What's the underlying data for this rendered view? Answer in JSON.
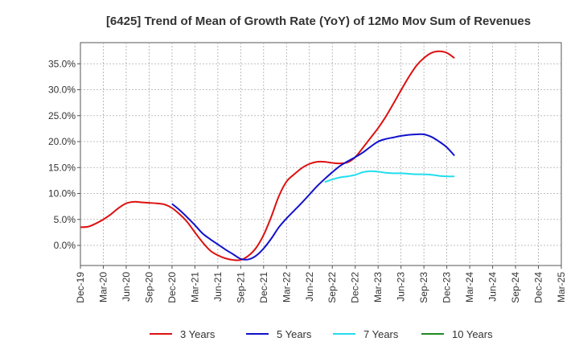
{
  "chart_data": {
    "type": "line",
    "title": "[6425]  Trend of Mean of Growth Rate (YoY) of 12Mo Mov Sum of Revenues",
    "xlabel": "",
    "ylabel": "",
    "ylim": [
      -4,
      40
    ],
    "y_ticks": [
      0,
      5,
      10,
      15,
      20,
      25,
      30,
      35
    ],
    "y_tick_labels": [
      "0.0%",
      "5.0%",
      "10.0%",
      "15.0%",
      "20.0%",
      "25.0%",
      "30.0%",
      "35.0%"
    ],
    "x_tick_labels": [
      "Dec-19",
      "Mar-20",
      "Jun-20",
      "Sep-20",
      "Dec-20",
      "Mar-21",
      "Jun-21",
      "Sep-21",
      "Dec-21",
      "Mar-22",
      "Jun-22",
      "Sep-22",
      "Dec-22",
      "Mar-23",
      "Jun-23",
      "Sep-23",
      "Dec-23",
      "Mar-24",
      "Jun-24",
      "Sep-24",
      "Dec-24",
      "Mar-25"
    ],
    "grid": true,
    "legend_position": "bottom",
    "series": [
      {
        "name": "3 Years",
        "color": "#dd1111",
        "points": [
          [
            0,
            3.5
          ],
          [
            1,
            3.6
          ],
          [
            2,
            4.2
          ],
          [
            3,
            5.0
          ],
          [
            4,
            6.0
          ],
          [
            5,
            7.2
          ],
          [
            6,
            8.1
          ],
          [
            7,
            8.4
          ],
          [
            8,
            8.3
          ],
          [
            9,
            8.2
          ],
          [
            10,
            8.1
          ],
          [
            11,
            7.9
          ],
          [
            12,
            7.2
          ],
          [
            13,
            6.0
          ],
          [
            14,
            4.5
          ],
          [
            15,
            2.5
          ],
          [
            16,
            0.6
          ],
          [
            17,
            -1.0
          ],
          [
            18,
            -1.9
          ],
          [
            19,
            -2.5
          ],
          [
            20,
            -2.8
          ],
          [
            21,
            -2.8
          ],
          [
            22,
            -2.0
          ],
          [
            23,
            -0.5
          ],
          [
            24,
            2.0
          ],
          [
            25,
            5.5
          ],
          [
            26,
            9.5
          ],
          [
            27,
            12.3
          ],
          [
            28,
            13.7
          ],
          [
            29,
            14.9
          ],
          [
            30,
            15.7
          ],
          [
            31,
            16.1
          ],
          [
            32,
            16.1
          ],
          [
            33,
            15.9
          ],
          [
            34,
            15.8
          ],
          [
            35,
            16.0
          ],
          [
            36,
            17.0
          ],
          [
            37,
            18.8
          ],
          [
            38,
            20.7
          ],
          [
            39,
            22.6
          ],
          [
            40,
            24.8
          ],
          [
            41,
            27.3
          ],
          [
            42,
            29.9
          ],
          [
            43,
            32.4
          ],
          [
            44,
            34.6
          ],
          [
            45,
            36.1
          ],
          [
            46,
            37.1
          ],
          [
            47,
            37.4
          ],
          [
            48,
            37.1
          ],
          [
            49,
            36.1
          ]
        ]
      },
      {
        "name": "5 Years",
        "color": "#1111cc",
        "points": [
          [
            12,
            8.0
          ],
          [
            13,
            6.8
          ],
          [
            14,
            5.4
          ],
          [
            15,
            3.9
          ],
          [
            16,
            2.3
          ],
          [
            17,
            1.2
          ],
          [
            18,
            0.2
          ],
          [
            19,
            -0.8
          ],
          [
            20,
            -1.7
          ],
          [
            21,
            -2.6
          ],
          [
            22,
            -2.7
          ],
          [
            23,
            -2.0
          ],
          [
            24,
            -0.6
          ],
          [
            25,
            1.3
          ],
          [
            26,
            3.5
          ],
          [
            27,
            5.2
          ],
          [
            28,
            6.7
          ],
          [
            29,
            8.2
          ],
          [
            30,
            9.8
          ],
          [
            31,
            11.4
          ],
          [
            32,
            12.8
          ],
          [
            33,
            14.1
          ],
          [
            34,
            15.3
          ],
          [
            35,
            16.2
          ],
          [
            36,
            17.0
          ],
          [
            37,
            17.9
          ],
          [
            38,
            19.0
          ],
          [
            39,
            20.0
          ],
          [
            40,
            20.5
          ],
          [
            41,
            20.8
          ],
          [
            42,
            21.1
          ],
          [
            43,
            21.3
          ],
          [
            44,
            21.4
          ],
          [
            45,
            21.4
          ],
          [
            46,
            20.9
          ],
          [
            47,
            20.0
          ],
          [
            48,
            18.9
          ],
          [
            49,
            17.3
          ]
        ]
      },
      {
        "name": "7 Years",
        "color": "#22ddee",
        "points": [
          [
            32,
            12.2
          ],
          [
            33,
            12.7
          ],
          [
            34,
            13.1
          ],
          [
            35,
            13.3
          ],
          [
            36,
            13.6
          ],
          [
            37,
            14.1
          ],
          [
            38,
            14.3
          ],
          [
            39,
            14.2
          ],
          [
            40,
            14.0
          ],
          [
            41,
            13.9
          ],
          [
            42,
            13.9
          ],
          [
            43,
            13.8
          ],
          [
            44,
            13.7
          ],
          [
            45,
            13.7
          ],
          [
            46,
            13.6
          ],
          [
            47,
            13.4
          ],
          [
            48,
            13.3
          ],
          [
            49,
            13.3
          ]
        ]
      },
      {
        "name": "10 Years",
        "color": "#228822",
        "points": []
      }
    ]
  }
}
